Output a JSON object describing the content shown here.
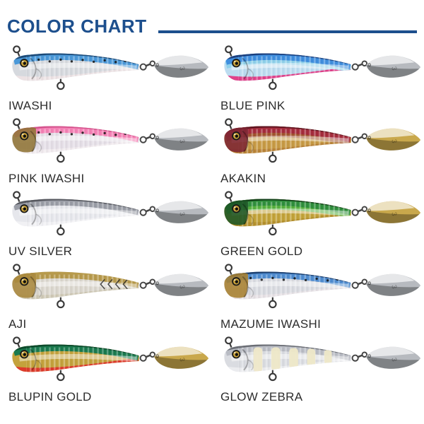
{
  "header": {
    "title": "COLOR CHART",
    "accent": "#1d4f8d"
  },
  "blade_mark": "3",
  "blade_colors": {
    "silver": {
      "base": "#b7babf"
    },
    "gold": {
      "base": "#c9a84c"
    }
  },
  "items": [
    {
      "label": "IWASHI",
      "colors": {
        "back": "#4a98d8",
        "back2": "transparent",
        "spine": "#1d4a77",
        "body": "#d6d9de",
        "belly": "#ece2e4",
        "head": "transparent",
        "chin": "transparent",
        "blade": "silver",
        "pattern": "dots"
      }
    },
    {
      "label": "BLUE PINK",
      "colors": {
        "back": "#3f8ede",
        "back2": "#8fd0ea",
        "spine": "#1c3f7d",
        "body": "#bcdcf0",
        "belly": "#e0418a",
        "head": "transparent",
        "chin": "#e0418a",
        "blade": "silver",
        "pattern": "scales"
      }
    },
    {
      "label": "PINK IWASHI",
      "colors": {
        "back": "#f481b5",
        "back2": "transparent",
        "spine": "#d4538c",
        "body": "#e4dee6",
        "belly": "#f0eaee",
        "head": "#8f7436",
        "chin": "transparent",
        "blade": "silver",
        "pattern": "dots"
      }
    },
    {
      "label": "AKAKIN",
      "colors": {
        "back": "#a52c3c",
        "back2": "#a2542f",
        "spine": "#5e1420",
        "body": "#c79a44",
        "belly": "#b98438",
        "head": "#7d2633",
        "chin": "transparent",
        "blade": "gold",
        "pattern": "scales"
      }
    },
    {
      "label": "UV SILVER",
      "colors": {
        "back": "#9a9da6",
        "back2": "transparent",
        "spine": "#55575e",
        "body": "#e6e7ec",
        "belly": "#f1f1f4",
        "head": "transparent",
        "chin": "transparent",
        "blade": "silver",
        "pattern": "scales"
      }
    },
    {
      "label": "GREEN GOLD",
      "colors": {
        "back": "#2f8f3c",
        "back2": "#56b13e",
        "spine": "#123f18",
        "body": "#c2a238",
        "belly": "#b5912e",
        "head": "#1c5526",
        "chin": "transparent",
        "blade": "gold",
        "pattern": "scales"
      }
    },
    {
      "label": "AJI",
      "colors": {
        "back": "#b79a4c",
        "back2": "transparent",
        "spine": "#6e5а26",
        "body": "#dad6cd",
        "belly": "#cfc9b6",
        "head": "#a8883e",
        "chin": "transparent",
        "blade": "silver",
        "pattern": "chevron"
      }
    },
    {
      "label": "MAZUME IWASHI",
      "colors": {
        "back": "#4f8cd0",
        "back2": "transparent",
        "spine": "#1c3f6e",
        "body": "#d8dae0",
        "belly": "#e6e1e5",
        "head": "#a7802f",
        "chin": "#d03a2a",
        "blade": "silver",
        "pattern": "dots"
      }
    },
    {
      "label": "BLUPIN GOLD",
      "colors": {
        "back": "#1a7a4e",
        "back2": "transparent",
        "spine": "#0d4a2c",
        "body": "#c4a23c",
        "belly": "#dd3b2c",
        "head": "transparent",
        "chin": "#dd3b2c",
        "blade": "gold",
        "pattern": "scales"
      }
    },
    {
      "label": "GLOW ZEBRA",
      "colors": {
        "back": "#b9bcc4",
        "back2": "transparent",
        "spine": "#6a6d74",
        "body": "#dadce1",
        "belly": "#ebecef",
        "head": "transparent",
        "chin": "transparent",
        "blade": "silver",
        "pattern": "zebra"
      }
    }
  ]
}
